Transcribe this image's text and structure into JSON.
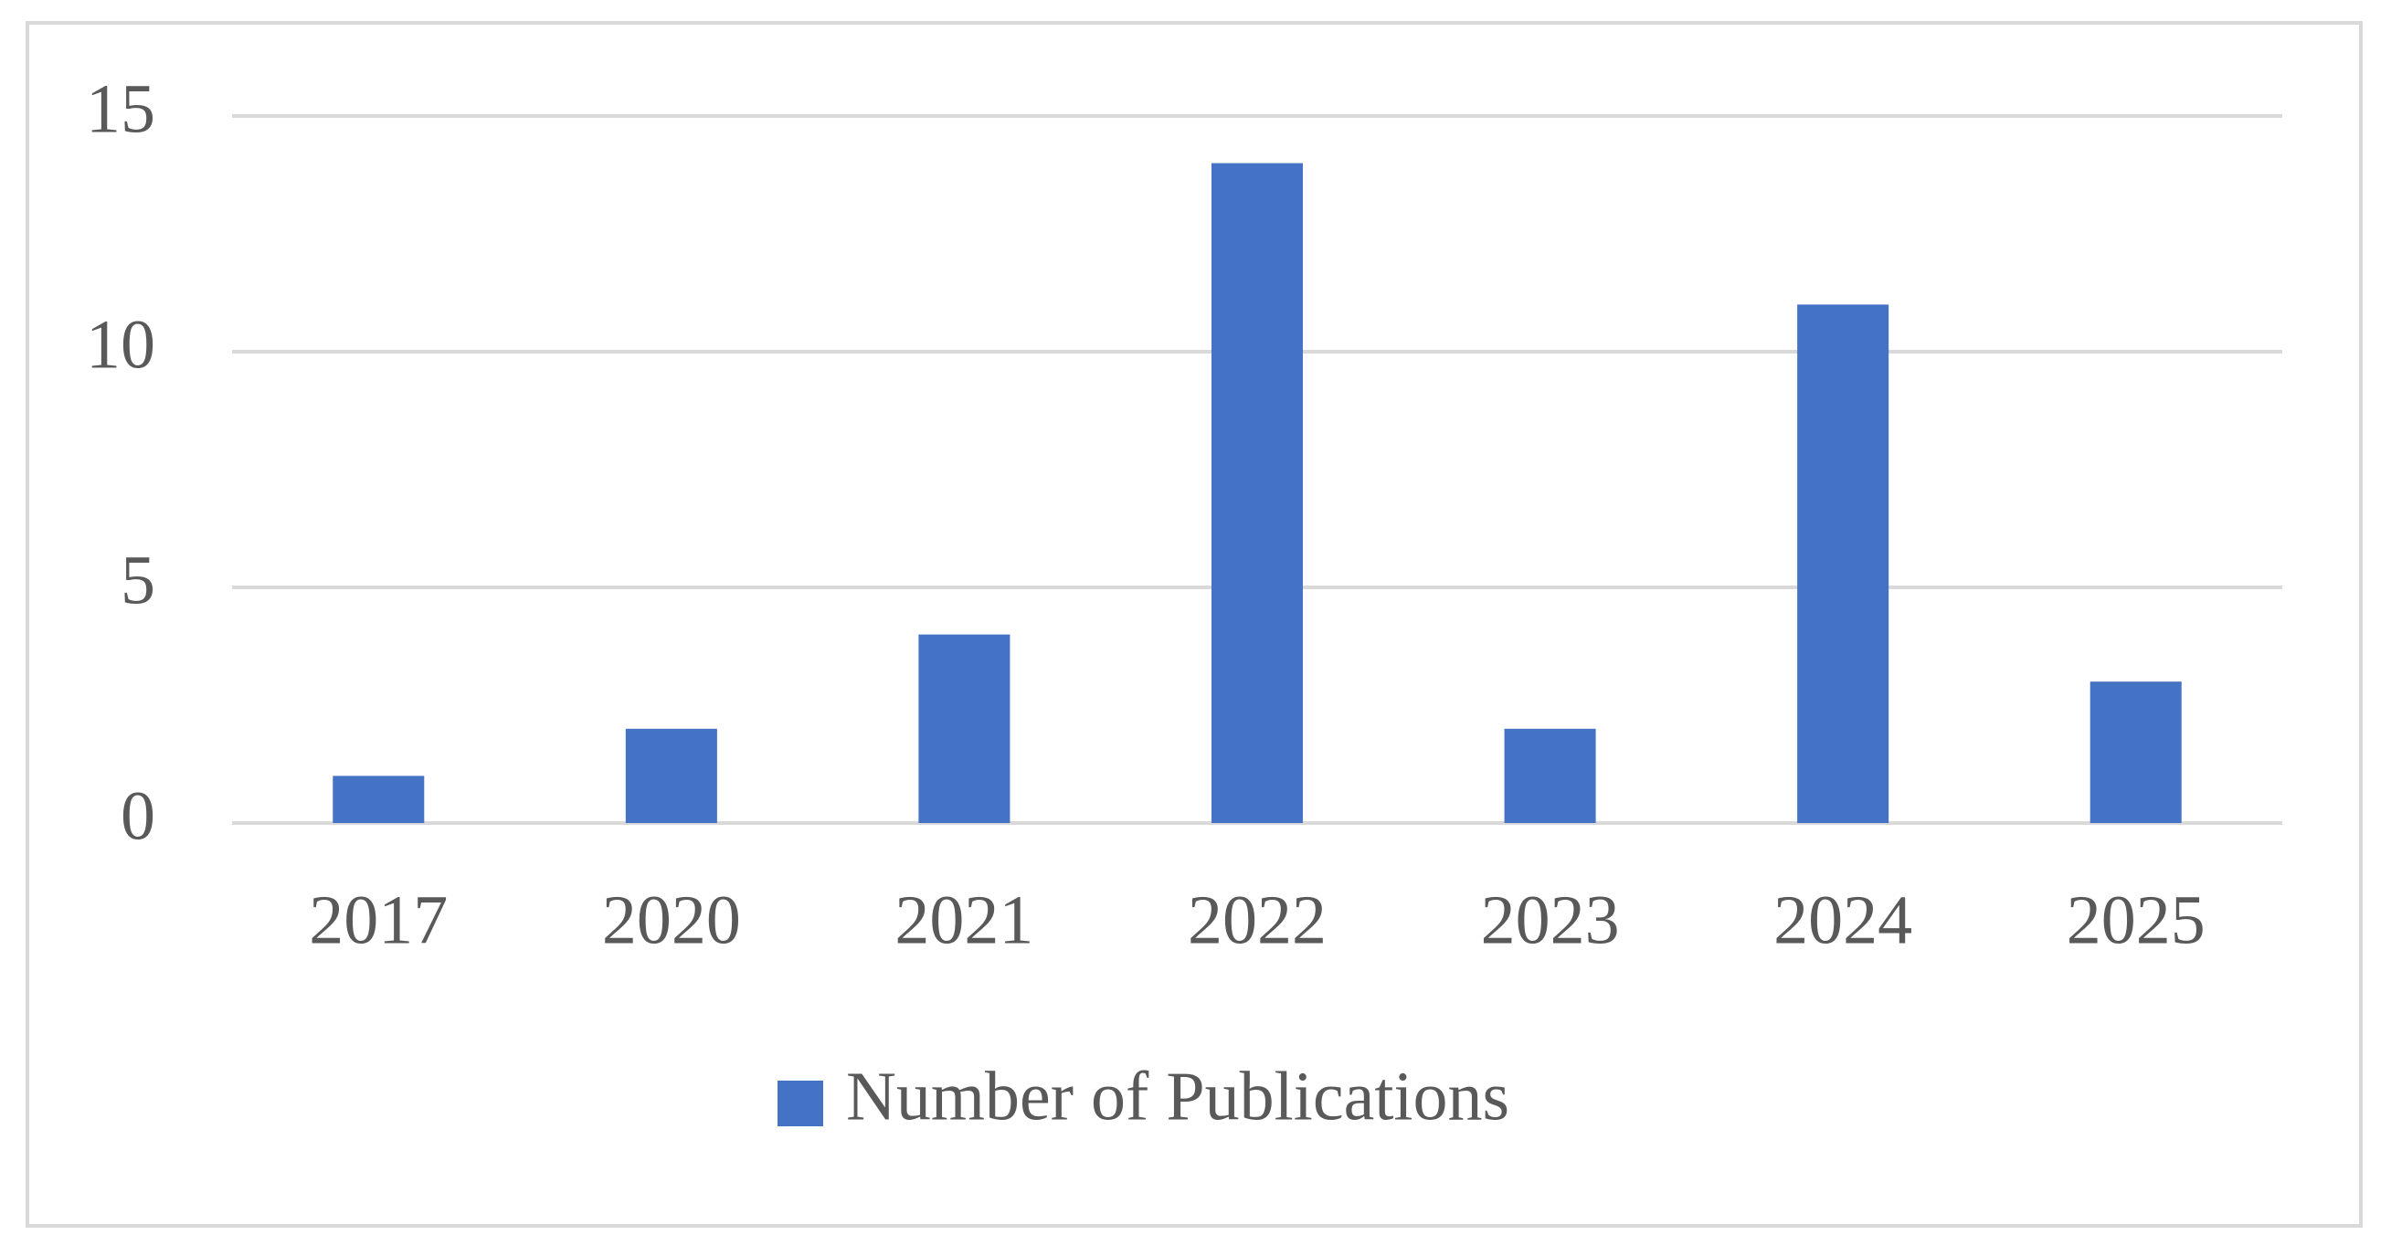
{
  "chart_data": {
    "type": "bar",
    "categories": [
      "2017",
      "2020",
      "2021",
      "2022",
      "2023",
      "2024",
      "2025"
    ],
    "series": [
      {
        "name": "Number of Publications",
        "color": "#4472c4",
        "values": [
          1,
          2,
          4,
          14,
          2,
          11,
          3
        ]
      }
    ],
    "ylim": [
      0,
      15
    ],
    "yticks": [
      0,
      5,
      10,
      15
    ],
    "grid": true,
    "legend": "bottom"
  }
}
